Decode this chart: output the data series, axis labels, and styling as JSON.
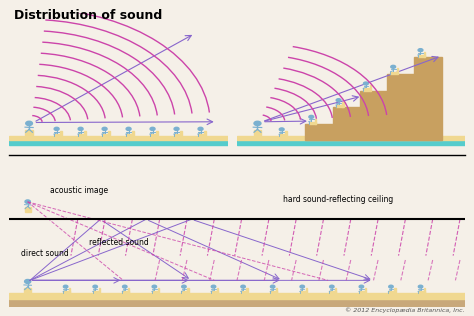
{
  "title": "Distribution of sound",
  "title_fontsize": 9,
  "copyright": "© 2012 Encyclopædia Britannica, Inc.",
  "bg_color": "#f5f0e8",
  "floor_color": "#c8a87a",
  "seat_color": "#f0d890",
  "person_color": "#7ab0d0",
  "wave_color": "#cc44aa",
  "arrow_color": "#8866cc",
  "stair_color": "#c8a060",
  "floor_bar_color": "#55cccc",
  "labels": {
    "acoustic_image": "acoustic image",
    "direct_sound": "direct sound",
    "reflected_sound": "reflected sound",
    "hard_ceiling": "hard sound-reflecting ceiling"
  },
  "label_fontsize": 5.5
}
